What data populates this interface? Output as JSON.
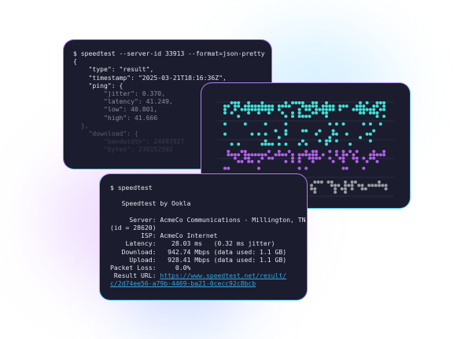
{
  "json_terminal": {
    "command": "$ speedtest --server-id 33913 --format=json-pretty",
    "lines": [
      "{",
      "    \"type\": \"result\",",
      "    \"timestamp\": \"2025-03-21T18:16:36Z\",",
      "    \"ping\": {",
      "        \"jitter\": 0.370,",
      "        \"latency\": 41.249,",
      "        \"low\": 40.801,",
      "        \"high\": 41.666",
      "  },",
      "    \"download\": {",
      "        \"bandwidth\": 24097927",
      "        \"bytes\": 239152592"
    ]
  },
  "dot_chart": {
    "colors": {
      "top": "#3fe0d6",
      "middle": "#b05ee8",
      "bottom": "#9a9aa0",
      "grid": "#2a2c42"
    }
  },
  "cli_terminal": {
    "command": "$ speedtest",
    "title": "   Speedtest by Ookla",
    "server_line": "     Server: AcmeCo Communications - Millington, TN",
    "server_id": "(id = 28620)",
    "isp": "        ISP: AcmeCo Internet",
    "latency": "    Latency:    28.03 ms   (0.32 ms jitter)",
    "download": "   Download:   942.74 Mbps (data used: 1.1 GB)",
    "upload": "     Upload:   928.41 Mbps (data used: 1.1 GB)",
    "packet_loss": "Packet Loss:     0.0%",
    "result_label": " Result URL: ",
    "result_url_1": "https://www.speedtest.net/result/",
    "result_url_2": "c/2d74ee56-a79b-4469-ba21-0cecc92c8bcb",
    "link_color": "#35a7e0"
  }
}
